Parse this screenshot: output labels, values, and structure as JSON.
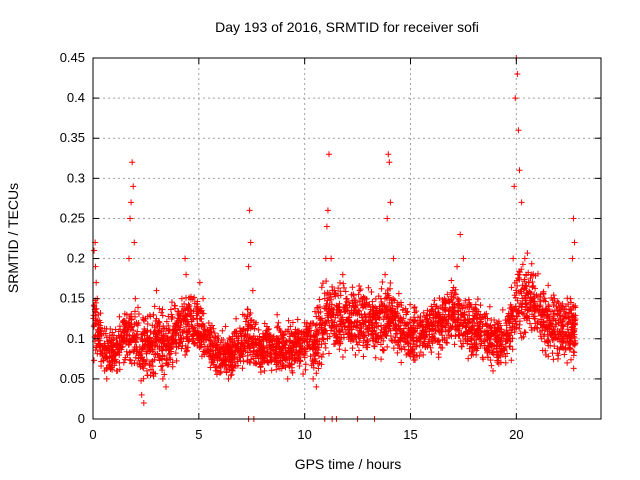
{
  "chart_data": {
    "type": "scatter",
    "title": "Day 193 of 2016, SRMTID for receiver sofi",
    "xlabel": "GPS time / hours",
    "ylabel": "SRMTID / TECUs",
    "xlim": [
      0,
      24
    ],
    "ylim": [
      0,
      0.45
    ],
    "x_ticks": [
      0,
      5,
      10,
      15,
      20
    ],
    "x_tick_labels": [
      "0",
      "5",
      "10",
      "15",
      "20"
    ],
    "y_ticks": [
      0,
      0.05,
      0.1,
      0.15,
      0.2,
      0.25,
      0.3,
      0.35,
      0.4,
      0.45
    ],
    "y_tick_labels": [
      "0",
      "0.05",
      "0.1",
      "0.15",
      "0.2",
      "0.25",
      "0.3",
      "0.35",
      "0.4",
      "0.45"
    ],
    "grid": true,
    "marker": "+",
    "color": "#ff0000",
    "series": [
      {
        "name": "SRMTID",
        "points": [
          [
            0.05,
            0.21
          ],
          [
            0.1,
            0.22
          ],
          [
            0.12,
            0.19
          ],
          [
            0.15,
            0.17
          ],
          [
            0.2,
            0.15
          ],
          [
            0.25,
            0.13
          ],
          [
            0.3,
            0.1
          ],
          [
            0.35,
            0.09
          ],
          [
            0.45,
            0.08
          ],
          [
            0.55,
            0.06
          ],
          [
            0.65,
            0.05
          ],
          [
            0.8,
            0.07
          ],
          [
            0.95,
            0.09
          ],
          [
            1.05,
            0.08
          ],
          [
            1.15,
            0.06
          ],
          [
            1.25,
            0.07
          ],
          [
            1.4,
            0.09
          ],
          [
            1.5,
            0.11
          ],
          [
            1.6,
            0.13
          ],
          [
            1.7,
            0.2
          ],
          [
            1.75,
            0.25
          ],
          [
            1.8,
            0.27
          ],
          [
            1.85,
            0.32
          ],
          [
            1.9,
            0.29
          ],
          [
            1.95,
            0.22
          ],
          [
            2.0,
            0.15
          ],
          [
            2.05,
            0.12
          ],
          [
            2.15,
            0.08
          ],
          [
            2.3,
            0.03
          ],
          [
            2.4,
            0.02
          ],
          [
            2.55,
            0.06
          ],
          [
            2.7,
            0.09
          ],
          [
            2.85,
            0.13
          ],
          [
            3.0,
            0.16
          ],
          [
            3.15,
            0.11
          ],
          [
            3.3,
            0.05
          ],
          [
            3.45,
            0.04
          ],
          [
            3.6,
            0.08
          ],
          [
            3.8,
            0.1
          ],
          [
            4.0,
            0.12
          ],
          [
            4.2,
            0.15
          ],
          [
            4.35,
            0.2
          ],
          [
            4.4,
            0.18
          ],
          [
            4.55,
            0.13
          ],
          [
            4.75,
            0.1
          ],
          [
            4.95,
            0.14
          ],
          [
            5.05,
            0.17
          ],
          [
            5.2,
            0.15
          ],
          [
            5.4,
            0.09
          ],
          [
            5.6,
            0.07
          ],
          [
            5.8,
            0.06
          ],
          [
            6.0,
            0.08
          ],
          [
            6.2,
            0.07
          ],
          [
            6.4,
            0.05
          ],
          [
            6.6,
            0.06
          ],
          [
            6.8,
            0.09
          ],
          [
            7.0,
            0.08
          ],
          [
            7.2,
            0.11
          ],
          [
            7.35,
            0.19
          ],
          [
            7.4,
            0.26
          ],
          [
            7.45,
            0.22
          ],
          [
            7.55,
            0.16
          ],
          [
            7.7,
            0.12
          ],
          [
            7.9,
            0.08
          ],
          [
            8.1,
            0.06
          ],
          [
            8.3,
            0.07
          ],
          [
            8.5,
            0.09
          ],
          [
            8.7,
            0.13
          ],
          [
            8.85,
            0.11
          ],
          [
            9.0,
            0.08
          ],
          [
            9.2,
            0.05
          ],
          [
            9.4,
            0.06
          ],
          [
            9.6,
            0.09
          ],
          [
            9.8,
            0.1
          ],
          [
            10.0,
            0.12
          ],
          [
            10.2,
            0.09
          ],
          [
            10.4,
            0.05
          ],
          [
            10.55,
            0.04
          ],
          [
            10.7,
            0.07
          ],
          [
            10.85,
            0.12
          ],
          [
            10.95,
            0.15
          ],
          [
            11.0,
            0.2
          ],
          [
            11.05,
            0.24
          ],
          [
            11.1,
            0.26
          ],
          [
            11.15,
            0.33
          ],
          [
            11.25,
            0.2
          ],
          [
            11.4,
            0.16
          ],
          [
            11.6,
            0.14
          ],
          [
            11.8,
            0.18
          ],
          [
            12.0,
            0.15
          ],
          [
            12.2,
            0.1
          ],
          [
            12.4,
            0.08
          ],
          [
            12.6,
            0.12
          ],
          [
            12.8,
            0.15
          ],
          [
            13.0,
            0.13
          ],
          [
            13.2,
            0.1
          ],
          [
            13.4,
            0.12
          ],
          [
            13.6,
            0.15
          ],
          [
            13.8,
            0.18
          ],
          [
            13.9,
            0.25
          ],
          [
            13.95,
            0.33
          ],
          [
            14.0,
            0.32
          ],
          [
            14.05,
            0.27
          ],
          [
            14.2,
            0.2
          ],
          [
            14.4,
            0.14
          ],
          [
            14.6,
            0.1
          ],
          [
            14.8,
            0.08
          ],
          [
            15.0,
            0.09
          ],
          [
            15.2,
            0.11
          ],
          [
            15.4,
            0.1
          ],
          [
            15.6,
            0.08
          ],
          [
            15.8,
            0.09
          ],
          [
            16.0,
            0.12
          ],
          [
            16.2,
            0.14
          ],
          [
            16.4,
            0.11
          ],
          [
            16.6,
            0.15
          ],
          [
            16.8,
            0.13
          ],
          [
            17.0,
            0.16
          ],
          [
            17.2,
            0.19
          ],
          [
            17.35,
            0.23
          ],
          [
            17.5,
            0.2
          ],
          [
            17.7,
            0.14
          ],
          [
            17.9,
            0.1
          ],
          [
            18.1,
            0.08
          ],
          [
            18.3,
            0.11
          ],
          [
            18.5,
            0.13
          ],
          [
            18.7,
            0.09
          ],
          [
            18.9,
            0.06
          ],
          [
            19.1,
            0.08
          ],
          [
            19.3,
            0.1
          ],
          [
            19.5,
            0.07
          ],
          [
            19.7,
            0.09
          ],
          [
            19.85,
            0.2
          ],
          [
            19.9,
            0.29
          ],
          [
            19.95,
            0.4
          ],
          [
            20.0,
            0.45
          ],
          [
            20.05,
            0.43
          ],
          [
            20.1,
            0.36
          ],
          [
            20.15,
            0.31
          ],
          [
            20.25,
            0.27
          ],
          [
            20.4,
            0.2
          ],
          [
            20.6,
            0.17
          ],
          [
            20.8,
            0.15
          ],
          [
            21.0,
            0.12
          ],
          [
            21.2,
            0.1
          ],
          [
            21.4,
            0.08
          ],
          [
            21.6,
            0.12
          ],
          [
            21.8,
            0.15
          ],
          [
            22.0,
            0.12
          ],
          [
            22.2,
            0.09
          ],
          [
            22.4,
            0.07
          ],
          [
            22.55,
            0.15
          ],
          [
            22.65,
            0.2
          ],
          [
            22.7,
            0.25
          ],
          [
            22.75,
            0.22
          ]
        ],
        "band": [
          [
            0.0,
            0.06,
            0.16
          ],
          [
            0.5,
            0.05,
            0.12
          ],
          [
            1.0,
            0.05,
            0.11
          ],
          [
            1.5,
            0.06,
            0.14
          ],
          [
            2.0,
            0.04,
            0.14
          ],
          [
            2.5,
            0.04,
            0.13
          ],
          [
            3.0,
            0.04,
            0.14
          ],
          [
            3.5,
            0.04,
            0.13
          ],
          [
            4.0,
            0.06,
            0.15
          ],
          [
            4.5,
            0.06,
            0.15
          ],
          [
            5.0,
            0.06,
            0.16
          ],
          [
            5.5,
            0.05,
            0.12
          ],
          [
            6.0,
            0.04,
            0.11
          ],
          [
            6.5,
            0.04,
            0.11
          ],
          [
            7.0,
            0.05,
            0.13
          ],
          [
            7.5,
            0.05,
            0.14
          ],
          [
            8.0,
            0.04,
            0.12
          ],
          [
            8.5,
            0.05,
            0.12
          ],
          [
            9.0,
            0.04,
            0.12
          ],
          [
            9.5,
            0.05,
            0.12
          ],
          [
            10.0,
            0.05,
            0.13
          ],
          [
            10.5,
            0.04,
            0.13
          ],
          [
            11.0,
            0.06,
            0.18
          ],
          [
            11.5,
            0.07,
            0.17
          ],
          [
            12.0,
            0.07,
            0.17
          ],
          [
            12.5,
            0.07,
            0.17
          ],
          [
            13.0,
            0.06,
            0.16
          ],
          [
            13.5,
            0.06,
            0.16
          ],
          [
            14.0,
            0.07,
            0.17
          ],
          [
            14.5,
            0.06,
            0.15
          ],
          [
            15.0,
            0.06,
            0.14
          ],
          [
            15.5,
            0.06,
            0.14
          ],
          [
            16.0,
            0.07,
            0.15
          ],
          [
            16.5,
            0.07,
            0.16
          ],
          [
            17.0,
            0.07,
            0.17
          ],
          [
            17.5,
            0.07,
            0.16
          ],
          [
            18.0,
            0.06,
            0.15
          ],
          [
            18.5,
            0.06,
            0.14
          ],
          [
            19.0,
            0.05,
            0.13
          ],
          [
            19.5,
            0.05,
            0.13
          ],
          [
            20.0,
            0.08,
            0.19
          ],
          [
            20.5,
            0.09,
            0.2
          ],
          [
            21.0,
            0.08,
            0.18
          ],
          [
            21.5,
            0.07,
            0.16
          ],
          [
            22.0,
            0.06,
            0.15
          ],
          [
            22.5,
            0.06,
            0.15
          ],
          [
            22.8,
            0.06,
            0.15
          ]
        ],
        "zero_points": [
          7.35,
          7.6,
          10.95,
          11.3,
          11.5,
          12.5,
          13.3
        ]
      }
    ]
  }
}
